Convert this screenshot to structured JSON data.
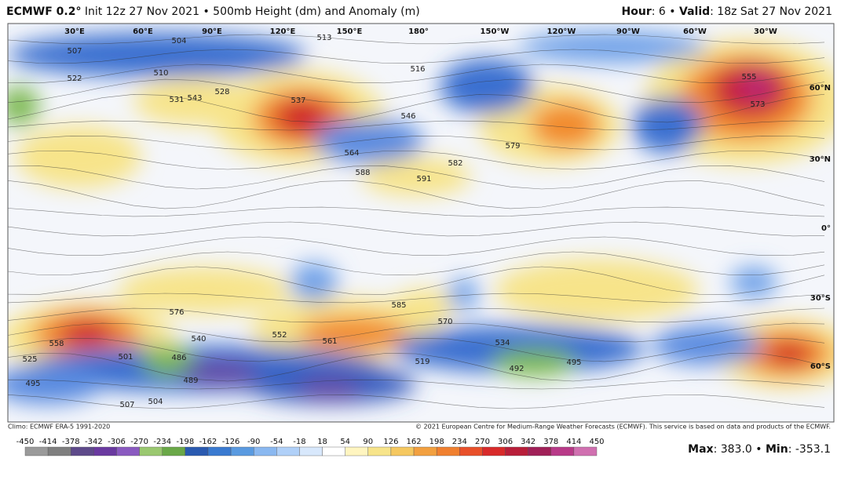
{
  "header": {
    "model": "ECMWF 0.2°",
    "title": "Init 12z 27 Nov 2021 • 500mb Height (dm) and Anomaly (m)",
    "hour_label": "Hour",
    "hour_value": ": 6 • ",
    "valid_label": "Valid",
    "valid_value": ": 18z Sat 27 Nov 2021"
  },
  "map": {
    "lon_labels": [
      "30°E",
      "60°E",
      "90°E",
      "120°E",
      "150°E",
      "180°",
      "150°W",
      "120°W",
      "90°W",
      "60°W",
      "30°W"
    ],
    "lat_labels": [
      "60°N",
      "30°N",
      "0°",
      "30°S",
      "60°S"
    ],
    "contour_labels": [
      "504",
      "507",
      "510",
      "513",
      "516",
      "522",
      "528",
      "531",
      "537",
      "543",
      "546",
      "564",
      "579",
      "588",
      "591",
      "585",
      "573",
      "555",
      "582",
      "558",
      "552",
      "561",
      "570",
      "534",
      "486",
      "489",
      "492",
      "495",
      "501",
      "519",
      "525",
      "576",
      "507",
      "504",
      "495",
      "540"
    ]
  },
  "footer": {
    "climo": "Climo: ECMWF ERA-5 1991-2020",
    "copyright": "© 2021 European Centre for Medium-Range Weather Forecasts (ECMWF). This service is based on data and products of the ECMWF.",
    "max_label": "Max",
    "max_value": ": 383.0 • ",
    "min_label": "Min",
    "min_value": ": -353.1"
  },
  "colorbar": {
    "ticks": [
      -450,
      -414,
      -378,
      -342,
      -306,
      -270,
      -234,
      -198,
      -162,
      -126,
      -90,
      -54,
      -18,
      18,
      54,
      90,
      126,
      162,
      198,
      234,
      270,
      306,
      342,
      378,
      414,
      450
    ]
  }
}
